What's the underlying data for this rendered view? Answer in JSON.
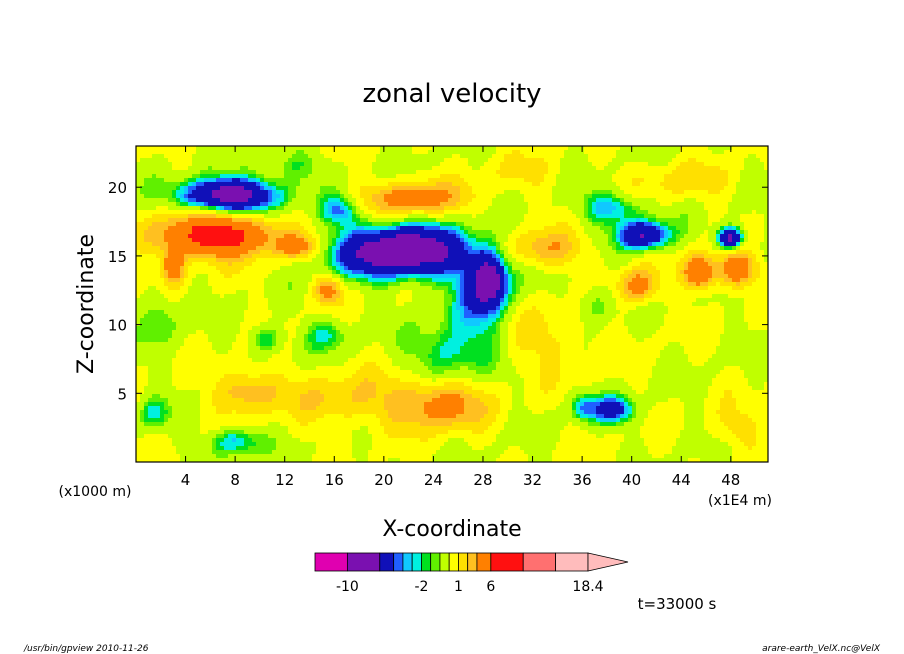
{
  "chart_data": {
    "type": "heatmap",
    "title": "zonal velocity",
    "xlabel": "X-coordinate",
    "ylabel": "Z-coordinate",
    "x_unit_left": "(x1000 m)",
    "x_unit_right": "(x1E4 m)",
    "x_ticks": [
      4,
      8,
      12,
      16,
      20,
      24,
      28,
      32,
      36,
      40,
      44,
      48
    ],
    "y_ticks": [
      5,
      10,
      15,
      20
    ],
    "xlim": [
      0,
      51
    ],
    "ylim": [
      0,
      23
    ],
    "time_label": "t=33000 s",
    "colorbar": {
      "labels": [
        "-10",
        "-2",
        "1",
        "6",
        "18.4"
      ],
      "label_values": [
        -10,
        -2,
        1,
        6,
        18.4
      ],
      "bins": [
        {
          "lo": -14,
          "hi": -10,
          "color": "#e000b0"
        },
        {
          "lo": -10,
          "hi": -6,
          "color": "#7a10b0"
        },
        {
          "lo": -6,
          "hi": -3.5,
          "color": "#1010b8"
        },
        {
          "lo": -3.5,
          "hi": -3,
          "color": "#2060ff"
        },
        {
          "lo": -3,
          "hi": -2.5,
          "color": "#10c8ff"
        },
        {
          "lo": -2.5,
          "hi": -2,
          "color": "#00f0e0"
        },
        {
          "lo": -2,
          "hi": -1.5,
          "color": "#00e020"
        },
        {
          "lo": -1.5,
          "hi": -1,
          "color": "#60f000"
        },
        {
          "lo": -1,
          "hi": 0,
          "color": "#c0ff00"
        },
        {
          "lo": 0,
          "hi": 1,
          "color": "#ffff00"
        },
        {
          "lo": 1,
          "hi": 2,
          "color": "#ffe000"
        },
        {
          "lo": 2,
          "hi": 3,
          "color": "#ffc020"
        },
        {
          "lo": 3,
          "hi": 6,
          "color": "#ff8000"
        },
        {
          "lo": 6,
          "hi": 10,
          "color": "#ff1010"
        },
        {
          "lo": 10,
          "hi": 14,
          "color": "#ff7070"
        },
        {
          "lo": 14,
          "hi": 18.4,
          "color": "#ffbcbc"
        }
      ]
    },
    "blobs": [
      {
        "x": 7.5,
        "z": 19.4,
        "rx": 3.8,
        "rz": 1.2,
        "v": -8
      },
      {
        "x": 6.5,
        "z": 16.5,
        "rx": 4.5,
        "rz": 1.5,
        "v": 8
      },
      {
        "x": 3,
        "z": 14.3,
        "rx": 0.9,
        "rz": 1.2,
        "v": 5
      },
      {
        "x": 13,
        "z": 15.7,
        "rx": 1.5,
        "rz": 0.8,
        "v": 4
      },
      {
        "x": 21.5,
        "z": 15.3,
        "rx": 5,
        "rz": 1.8,
        "v": -9
      },
      {
        "x": 16.5,
        "z": 18.3,
        "rx": 1.5,
        "rz": 1.1,
        "v": -3
      },
      {
        "x": 22.5,
        "z": 19.2,
        "rx": 4,
        "rz": 1.2,
        "v": 4
      },
      {
        "x": 28,
        "z": 12,
        "rx": 2.5,
        "rz": 3.5,
        "v": -3
      },
      {
        "x": 28.5,
        "z": 13.2,
        "rx": 1.3,
        "rz": 1.8,
        "v": -6
      },
      {
        "x": 25,
        "z": 8,
        "rx": 3,
        "rz": 2.2,
        "v": -2.5
      },
      {
        "x": 38.5,
        "z": 18.5,
        "rx": 2.5,
        "rz": 1.2,
        "v": -3
      },
      {
        "x": 41,
        "z": 16.5,
        "rx": 2,
        "rz": 1.0,
        "v": -6
      },
      {
        "x": 48,
        "z": 16.3,
        "rx": 1,
        "rz": 0.8,
        "v": -7
      },
      {
        "x": 45.5,
        "z": 13.8,
        "rx": 1.2,
        "rz": 1.2,
        "v": 6
      },
      {
        "x": 48.5,
        "z": 14,
        "rx": 1.5,
        "rz": 1.2,
        "v": 5
      },
      {
        "x": 40.5,
        "z": 12.8,
        "rx": 1.5,
        "rz": 1.2,
        "v": 4
      },
      {
        "x": 38.5,
        "z": 3.8,
        "rx": 1.8,
        "rz": 1.0,
        "v": -4
      },
      {
        "x": 36,
        "z": 4,
        "rx": 1.0,
        "rz": 1.0,
        "v": -2.5
      },
      {
        "x": 24.5,
        "z": 4.2,
        "rx": 3.5,
        "rz": 1.8,
        "v": 4
      },
      {
        "x": 17,
        "z": 4.5,
        "rx": 5,
        "rz": 2,
        "v": 2
      },
      {
        "x": 9,
        "z": 5.2,
        "rx": 2.5,
        "rz": 1.5,
        "v": 3
      },
      {
        "x": 10.5,
        "z": 9,
        "rx": 1.3,
        "rz": 1.0,
        "v": -2.5
      },
      {
        "x": 15.5,
        "z": 9.3,
        "rx": 1.8,
        "rz": 1.2,
        "v": -2
      },
      {
        "x": 15.5,
        "z": 12.5,
        "rx": 1.0,
        "rz": 1.0,
        "v": 4
      },
      {
        "x": 33,
        "z": 15.5,
        "rx": 3,
        "rz": 1.3,
        "v": 3
      },
      {
        "x": 33,
        "z": 9,
        "rx": 4,
        "rz": 2.5,
        "v": 1.5
      },
      {
        "x": 44,
        "z": 20.5,
        "rx": 4,
        "rz": 1.3,
        "v": 1.5
      },
      {
        "x": 2,
        "z": 10.5,
        "rx": 1.5,
        "rz": 2,
        "v": -1.8
      },
      {
        "x": 8,
        "z": 1.5,
        "rx": 2,
        "rz": 1.0,
        "v": -3
      },
      {
        "x": 48.5,
        "z": 2.5,
        "rx": 2,
        "rz": 1.5,
        "v": 1.5
      },
      {
        "x": 1.5,
        "z": 3.5,
        "rx": 1.2,
        "rz": 1.2,
        "v": -2
      },
      {
        "x": 12.5,
        "z": 21.5,
        "rx": 3,
        "rz": 1.2,
        "v": -1.5
      },
      {
        "x": 31,
        "z": 21,
        "rx": 3,
        "rz": 1.5,
        "v": 1
      },
      {
        "x": 37,
        "z": 11.5,
        "rx": 1.5,
        "rz": 1.5,
        "v": -1.8
      }
    ]
  },
  "footer": {
    "left": "/usr/bin/gpview   2010-11-26",
    "right": "arare-earth_VelX.nc@VelX"
  }
}
